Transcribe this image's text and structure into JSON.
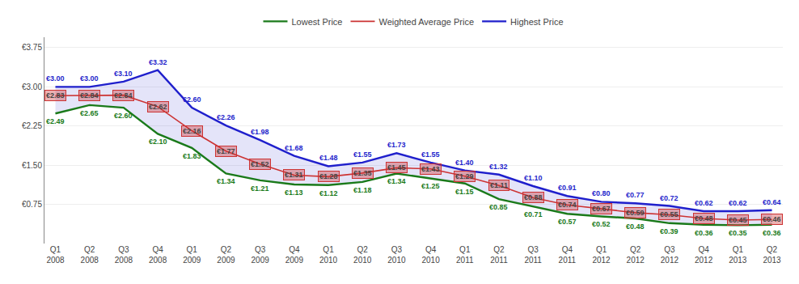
{
  "chart_data": {
    "type": "line",
    "categories": [
      "Q1\n2008",
      "Q2\n2008",
      "Q3\n2008",
      "Q4\n2008",
      "Q1\n2009",
      "Q2\n2009",
      "Q3\n2009",
      "Q4\n2009",
      "Q1\n2010",
      "Q2\n2010",
      "Q3\n2010",
      "Q4\n2010",
      "Q1\n2011",
      "Q2\n2011",
      "Q3\n2011",
      "Q4\n2011",
      "Q1\n2012",
      "Q2\n2012",
      "Q3\n2012",
      "Q4\n2012",
      "Q1\n2013",
      "Q2\n2013"
    ],
    "series": [
      {
        "name": "Highest Price",
        "color": "#1F1FCC",
        "values": [
          3.0,
          3.0,
          3.1,
          3.32,
          2.6,
          2.26,
          1.98,
          1.68,
          1.48,
          1.55,
          1.73,
          1.55,
          1.4,
          1.32,
          1.1,
          0.91,
          0.8,
          0.77,
          0.72,
          0.62,
          0.62,
          0.64
        ],
        "value_labels": [
          "€3.00",
          "€3.00",
          "€3.10",
          "€3.32",
          "€2.60",
          "€2.26",
          "€1.98",
          "€1.68",
          "€1.48",
          "€1.55",
          "€1.73",
          "€1.55",
          "€1.40",
          "€1.32",
          "€1.10",
          "€0.91",
          "€0.80",
          "€0.77",
          "€0.72",
          "€0.62",
          "€0.62",
          "€0.64"
        ]
      },
      {
        "name": "Weighted Average Price",
        "color": "#CC3333",
        "values": [
          2.83,
          2.84,
          2.84,
          2.62,
          2.16,
          1.77,
          1.52,
          1.31,
          1.28,
          1.35,
          1.45,
          1.43,
          1.29,
          1.11,
          0.88,
          0.74,
          0.67,
          0.59,
          0.55,
          0.48,
          0.45,
          0.46
        ],
        "value_labels": [
          "€2.83",
          "€2.84",
          "€2.84",
          "€2.62",
          "€2.16",
          "€1.77",
          "€1.52",
          "€1.31",
          "€1.28",
          "€1.35",
          "€1.45",
          "€1.43",
          "€1.29",
          "€1.11",
          "€0.88",
          "€0.74",
          "€0.67",
          "€0.59",
          "€0.55",
          "€0.48",
          "€0.45",
          "€0.46"
        ]
      },
      {
        "name": "Lowest Price",
        "color": "#1A7A1A",
        "values": [
          2.49,
          2.65,
          2.6,
          2.1,
          1.83,
          1.34,
          1.21,
          1.13,
          1.12,
          1.18,
          1.34,
          1.25,
          1.15,
          0.85,
          0.71,
          0.57,
          0.52,
          0.48,
          0.39,
          0.36,
          0.35,
          0.36
        ],
        "value_labels": [
          "€2.49",
          "€2.65",
          "€2.60",
          "€2.10",
          "€1.83",
          "€1.34",
          "€1.21",
          "€1.13",
          "€1.12",
          "€1.18",
          "€1.34",
          "€1.25",
          "€1.15",
          "€0.85",
          "€0.71",
          "€0.57",
          "€0.52",
          "€0.48",
          "€0.39",
          "€0.36",
          "€0.35",
          "€0.36"
        ]
      }
    ],
    "ylim": [
      0.0,
      3.95
    ],
    "yticks": [
      {
        "value": 0.75,
        "label": "€0.75"
      },
      {
        "value": 1.5,
        "label": "€1.50"
      },
      {
        "value": 2.25,
        "label": "€2.25"
      },
      {
        "value": 3.0,
        "label": "€3.00"
      },
      {
        "value": 3.75,
        "label": "€3.75"
      }
    ],
    "grid": true,
    "legend": "top",
    "data_labels": true
  }
}
